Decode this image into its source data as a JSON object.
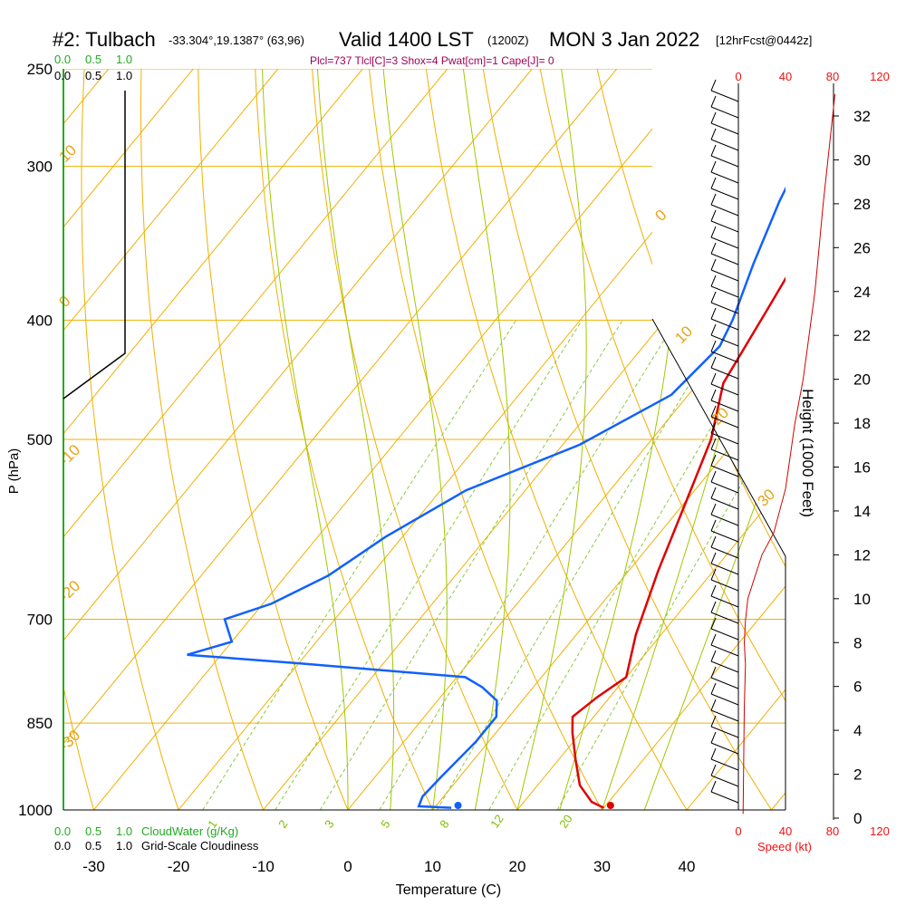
{
  "header": {
    "station": "#2: Tulbach",
    "coords": "-33.304°,19.1387° (63,96)",
    "valid": "Valid 1400 LST",
    "zulu": "(1200Z)",
    "date": "MON 3 Jan 2022",
    "forecast": "[12hrFcst@0442z]",
    "indices": "Plcl=737 Tlcl[C]=3 Shox=4 Pwat[cm]=1 Cape[J]= 0"
  },
  "colors": {
    "isotherm": "#f0b000",
    "dry_adiabat": "#a0c800",
    "mixing_ratio": "#8cc83c",
    "temperature": "#e00000",
    "dewpoint": "#1060ff",
    "speed_profile": "#d00000",
    "cloud_axis": "#22aa22",
    "header_indices": "#a0005a"
  },
  "labels": {
    "y_axis": "P (hPa)",
    "x_axis": "Temperature (C)",
    "height_axis": "Height (1000 Feet)",
    "cloudwater": "CloudWater (g/Kg)",
    "cloudiness": "Grid-Scale Cloudiness",
    "speed": "Speed (kt)"
  },
  "cloud_scale": [
    "0.0",
    "0.5",
    "1.0"
  ],
  "chart_data": {
    "type": "line",
    "title": "#2: Tulbach Valid 1400 LST (1200Z) MON 3 Jan 2022",
    "xlabel": "Temperature (C)",
    "ylabel": "P (hPa)",
    "xlim": [
      -33.5,
      47
    ],
    "ylim_hpa": [
      1000,
      250
    ],
    "x_ticks": [
      -30,
      -20,
      -10,
      0,
      10,
      20,
      30,
      40
    ],
    "pressure_ticks": [
      250,
      300,
      400,
      500,
      700,
      850,
      1000
    ],
    "height_ticks_kft": [
      0,
      2,
      4,
      6,
      8,
      10,
      12,
      14,
      16,
      18,
      20,
      22,
      24,
      26,
      28,
      30,
      32
    ],
    "speed_ticks_kt": [
      0,
      40,
      80,
      120
    ],
    "isotherm_labels": [
      "10",
      "0",
      "-10",
      "-20",
      "-30",
      "0",
      "10",
      "20",
      "30"
    ],
    "mixing_ratio_labels": [
      "1",
      "2",
      "3",
      "5",
      "8",
      "12",
      "20"
    ],
    "series": [
      {
        "name": "Temperature",
        "points": [
          [
            30,
            996
          ],
          [
            28,
            985
          ],
          [
            25,
            955
          ],
          [
            22,
            910
          ],
          [
            19,
            865
          ],
          [
            17.5,
            840
          ],
          [
            18.5,
            810
          ],
          [
            20,
            780
          ],
          [
            17,
            720
          ],
          [
            13.5,
            640
          ],
          [
            10,
            560
          ],
          [
            7,
            500
          ],
          [
            3,
            450
          ],
          [
            1,
            390
          ],
          [
            -1,
            340
          ],
          [
            -3,
            310
          ],
          [
            -5,
            285
          ],
          [
            -7,
            265
          ]
        ]
      },
      {
        "name": "Dewpoint",
        "points": [
          [
            12,
            996
          ],
          [
            8,
            993
          ],
          [
            7.5,
            975
          ],
          [
            7.8,
            940
          ],
          [
            8.5,
            880
          ],
          [
            8.5,
            840
          ],
          [
            7,
            815
          ],
          [
            4,
            795
          ],
          [
            1,
            780
          ],
          [
            -20,
            760
          ],
          [
            -34,
            748
          ],
          [
            -30,
            730
          ],
          [
            -33,
            700
          ],
          [
            -29,
            680
          ],
          [
            -25,
            645
          ],
          [
            -22,
            600
          ],
          [
            -17,
            550
          ],
          [
            -8,
            505
          ],
          [
            -2,
            460
          ],
          [
            -1,
            420
          ],
          [
            -2,
            400
          ],
          [
            -5,
            360
          ],
          [
            -8,
            320
          ],
          [
            -10,
            290
          ],
          [
            -12,
            268
          ]
        ]
      }
    ],
    "surface_points": {
      "temperature": 31,
      "dewpoint": 13
    },
    "wind_speed_profile_kt": [
      [
        4,
        0.2
      ],
      [
        5,
        5
      ],
      [
        6,
        7
      ],
      [
        5,
        8
      ],
      [
        6,
        9
      ],
      [
        8,
        10
      ],
      [
        20,
        12
      ],
      [
        30,
        13
      ],
      [
        40,
        15
      ],
      [
        48,
        18
      ],
      [
        55,
        20
      ],
      [
        65,
        24
      ],
      [
        72,
        28
      ],
      [
        80,
        32
      ],
      [
        82,
        33
      ]
    ]
  }
}
